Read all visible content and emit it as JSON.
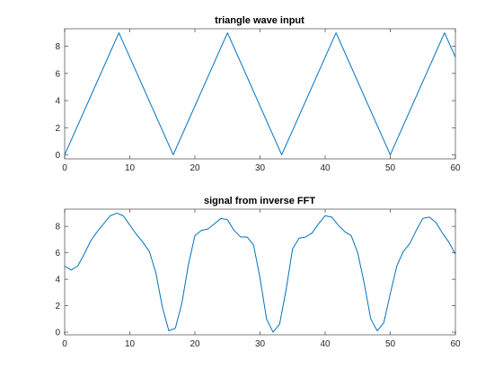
{
  "chart_data": [
    {
      "type": "line",
      "title": "triangle wave input",
      "xlabel": "",
      "ylabel": "",
      "xlim": [
        0,
        60
      ],
      "ylim": [
        -0.3,
        9.3
      ],
      "xticks": [
        0,
        10,
        20,
        30,
        40,
        50,
        60
      ],
      "yticks": [
        0,
        2,
        4,
        6,
        8
      ],
      "grid": false,
      "color": "#0072BD",
      "series": [
        {
          "x": [
            0,
            8.33,
            16.67,
            25,
            33.33,
            41.67,
            50,
            58.33,
            60
          ],
          "y": [
            0,
            9,
            0,
            9,
            0,
            9,
            0,
            9,
            7.2
          ]
        }
      ]
    },
    {
      "type": "line",
      "title": "signal from inverse FFT",
      "xlabel": "",
      "ylabel": "",
      "xlim": [
        0,
        60
      ],
      "ylim": [
        -0.2,
        9.3
      ],
      "xticks": [
        0,
        10,
        20,
        30,
        40,
        50,
        60
      ],
      "yticks": [
        0,
        2,
        4,
        6,
        8
      ],
      "grid": false,
      "color": "#0072BD",
      "series": [
        {
          "x": [
            0,
            1,
            2,
            3,
            4,
            5,
            6,
            7,
            8,
            9,
            10,
            11,
            12,
            13,
            14,
            15,
            16,
            17,
            18,
            19,
            20,
            21,
            22,
            23,
            24,
            25,
            26,
            27,
            28,
            29,
            30,
            31,
            32,
            33,
            34,
            35,
            36,
            37,
            38,
            39,
            40,
            41,
            42,
            43,
            44,
            45,
            46,
            47,
            48,
            49,
            50,
            51,
            52,
            53,
            54,
            55,
            56,
            57,
            58,
            59,
            60
          ],
          "y": [
            5.0,
            4.7,
            5.0,
            5.9,
            6.9,
            7.6,
            8.2,
            8.8,
            9.0,
            8.8,
            8.1,
            7.4,
            6.8,
            6.1,
            4.5,
            1.9,
            0.1,
            0.3,
            2.2,
            5.1,
            7.3,
            7.7,
            7.8,
            8.2,
            8.6,
            8.5,
            7.7,
            7.2,
            7.2,
            6.6,
            4.1,
            1.0,
            0.0,
            0.6,
            3.2,
            6.3,
            7.1,
            7.2,
            7.5,
            8.2,
            8.8,
            8.7,
            8.1,
            7.6,
            7.3,
            6.0,
            3.7,
            1.0,
            0.1,
            0.7,
            2.9,
            5.0,
            6.1,
            6.7,
            7.7,
            8.6,
            8.7,
            8.3,
            7.5,
            6.8,
            5.9
          ]
        }
      ]
    }
  ]
}
